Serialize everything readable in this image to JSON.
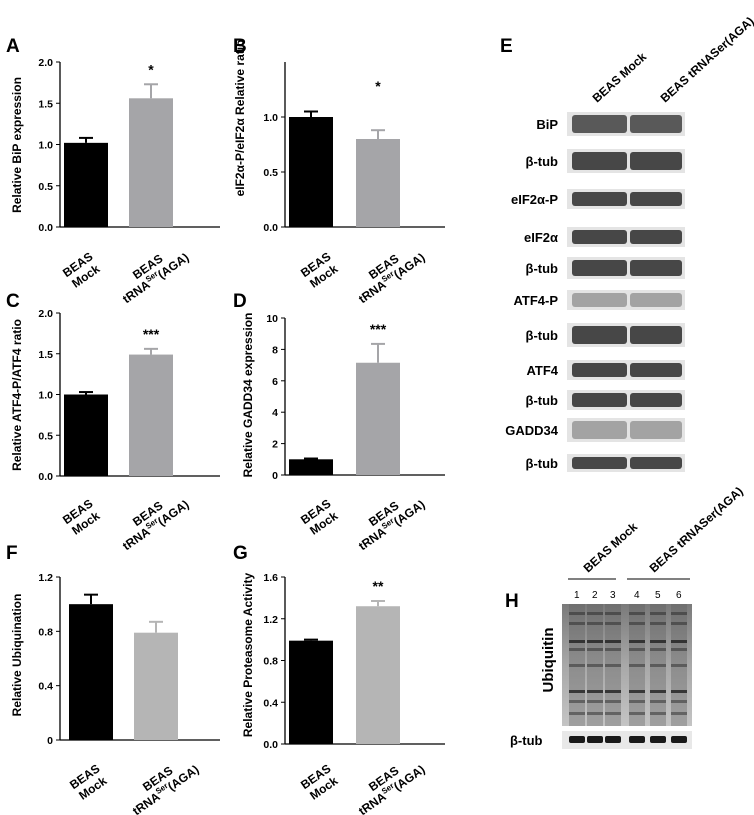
{
  "colors": {
    "mock": "#000000",
    "tRNA": "#a5a5a8",
    "tRNA_light": "#b5b5b5"
  },
  "chart_data": [
    {
      "panel": "A",
      "type": "bar",
      "categories": [
        "BEAS Mock",
        "BEAS tRNASer(AGA)"
      ],
      "series": [
        {
          "values": [
            1.02,
            1.56
          ],
          "errors": [
            0.06,
            0.17
          ]
        }
      ],
      "ylabel": "Relative BiP expression",
      "ylim": [
        0,
        2.0
      ],
      "yticks": [
        "0.0",
        "0.5",
        "1.0",
        "1.5",
        "2.0"
      ],
      "annotations": [
        "",
        "*"
      ]
    },
    {
      "panel": "B",
      "type": "bar",
      "categories": [
        "BEAS Mock",
        "BEAS tRNASer(AGA)"
      ],
      "series": [
        {
          "values": [
            1.0,
            0.8
          ],
          "errors": [
            0.05,
            0.08
          ]
        }
      ],
      "ylabel": "eIF2α-P/eIF2α Relative ratio",
      "ylim": [
        0,
        1.5
      ],
      "yticks": [
        "0.0",
        "0.5",
        "1.0"
      ],
      "annotations": [
        "",
        "*"
      ]
    },
    {
      "panel": "C",
      "type": "bar",
      "categories": [
        "BEAS Mock",
        "BEAS tRNASer(AGA)"
      ],
      "series": [
        {
          "values": [
            1.0,
            1.49
          ],
          "errors": [
            0.03,
            0.07
          ]
        }
      ],
      "ylabel": "Relative ATF4-P/ATF4 ratio",
      "ylim": [
        0,
        2.0
      ],
      "yticks": [
        "0.0",
        "0.5",
        "1.0",
        "1.5",
        "2.0"
      ],
      "annotations": [
        "",
        "***"
      ]
    },
    {
      "panel": "D",
      "type": "bar",
      "categories": [
        "BEAS Mock",
        "BEAS tRNASer(AGA)"
      ],
      "series": [
        {
          "values": [
            1.0,
            7.15
          ],
          "errors": [
            0.05,
            1.2
          ]
        }
      ],
      "ylabel": "Relative GADD34 expression",
      "ylim": [
        0,
        10
      ],
      "yticks": [
        "0",
        "2",
        "4",
        "6",
        "8",
        "10"
      ],
      "annotations": [
        "",
        "***"
      ]
    },
    {
      "panel": "F",
      "type": "bar",
      "categories": [
        "BEAS Mock",
        "BEAS tRNASer(AGA)"
      ],
      "series": [
        {
          "values": [
            1.0,
            0.79
          ],
          "errors": [
            0.07,
            0.08
          ]
        }
      ],
      "ylabel": "Relative Ubiquination",
      "ylim": [
        0,
        1.2
      ],
      "yticks": [
        "0",
        "0.4",
        "0.8",
        "1.2"
      ],
      "annotations": [
        "",
        ""
      ]
    },
    {
      "panel": "G",
      "type": "bar",
      "categories": [
        "BEAS Mock",
        "BEAS tRNASer(AGA)"
      ],
      "series": [
        {
          "values": [
            0.99,
            1.32
          ],
          "errors": [
            0.01,
            0.05
          ]
        }
      ],
      "ylabel": "Relative Proteasome Activity",
      "ylim": [
        0,
        1.6
      ],
      "yticks": [
        "0.0",
        "0.4",
        "0.8",
        "1.2",
        "1.6"
      ],
      "annotations": [
        "",
        "**"
      ]
    }
  ],
  "blot_E": {
    "letter": "E",
    "columns": [
      "BEAS Mock",
      "BEAS tRNASer(AGA)"
    ],
    "rows": [
      "BiP",
      "β-tub",
      "eIF2α-P",
      "eIF2α",
      "β-tub",
      "ATF4-P",
      "β-tub",
      "ATF4",
      "β-tub",
      "GADD34",
      "β-tub"
    ]
  },
  "blot_H": {
    "letter": "H",
    "groups": [
      "BEAS Mock",
      "BEAS tRNASer(AGA)"
    ],
    "lanes": [
      "1",
      "2",
      "3",
      "4",
      "5",
      "6"
    ],
    "main_label": "Ubiquitin",
    "loading_label": "β-tub"
  }
}
